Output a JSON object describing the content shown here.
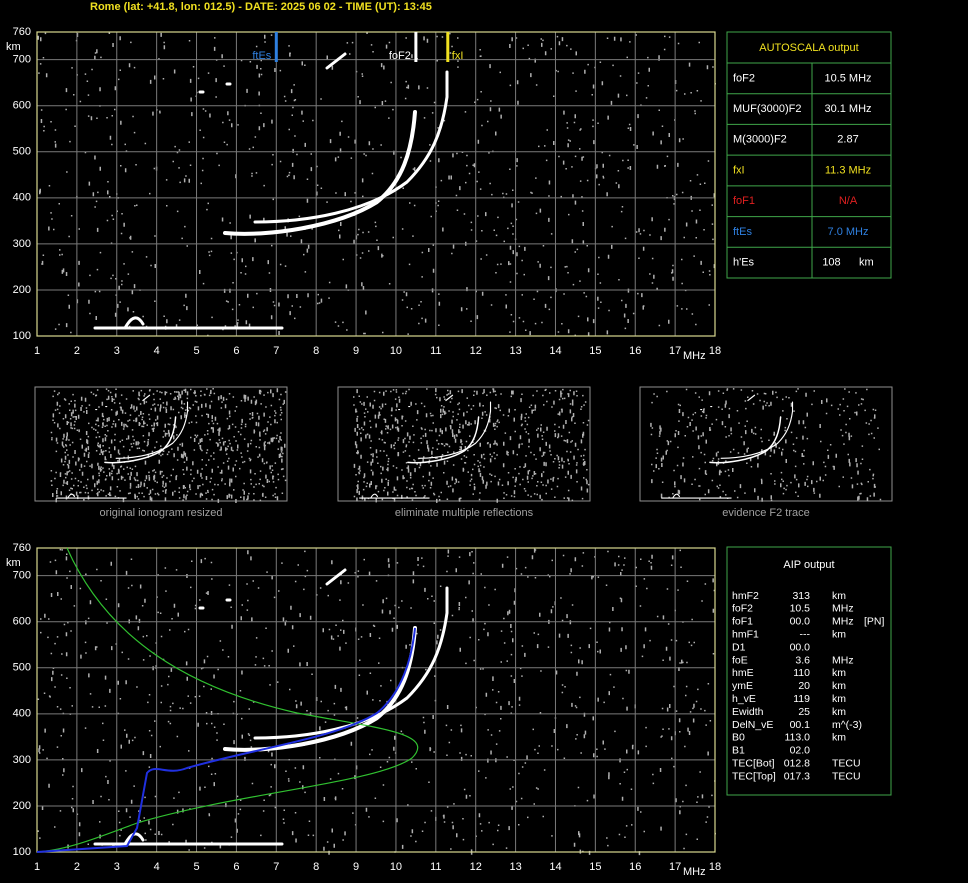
{
  "header": {
    "title": "Rome (lat: +41.8, lon: 012.5) - DATE: 2025 06 02 - TIME (UT): 13:45"
  },
  "ionogram": {
    "xlim": [
      1,
      18
    ],
    "ylim": [
      100,
      760
    ],
    "xticks": [
      1,
      2,
      3,
      4,
      5,
      6,
      7,
      8,
      9,
      10,
      11,
      12,
      13,
      14,
      15,
      16,
      17,
      18
    ],
    "yticks": [
      100,
      200,
      300,
      400,
      500,
      600,
      700,
      760
    ],
    "y_unit": "km",
    "x_unit": "MHz",
    "markers": [
      {
        "label": "ftEs",
        "frequency": 7.0,
        "color": "#2f80e0"
      },
      {
        "label": "foF2",
        "frequency": 10.5,
        "color": "#ffffff"
      },
      {
        "label": "fxI",
        "frequency": 11.3,
        "color": "#f0e020"
      }
    ]
  },
  "autoscala": {
    "title": "AUTOSCALA output",
    "rows": [
      {
        "label": "foF2",
        "value": "10.5 MHz",
        "color": "#ffffff"
      },
      {
        "label": "MUF(3000)F2",
        "value": "30.1 MHz",
        "color": "#ffffff"
      },
      {
        "label": "M(3000)F2",
        "value": "2.87",
        "color": "#ffffff"
      },
      {
        "label": "fxI",
        "value": "11.3 MHz",
        "color": "#f0e020"
      },
      {
        "label": "foF1",
        "value": "N/A",
        "color": "#e02020"
      },
      {
        "label": "ftEs",
        "value": "7.0 MHz",
        "color": "#2f80e0"
      },
      {
        "label": "h'Es",
        "value": "108      km",
        "color": "#ffffff"
      }
    ]
  },
  "thumbnails": [
    {
      "caption": "original ionogram resized"
    },
    {
      "caption": "eliminate multiple reflections"
    },
    {
      "caption": "evidence F2 trace"
    }
  ],
  "aip": {
    "title": "AIP output",
    "rows": [
      [
        "hmF2",
        "313",
        "km"
      ],
      [
        "foF2",
        "10.5",
        "MHz"
      ],
      [
        "foF1",
        "00.0",
        "MHz",
        "[PN]"
      ],
      [
        "hmF1",
        "---",
        "km"
      ],
      [
        "D1",
        "00.0"
      ],
      [
        "foE",
        "3.6",
        "MHz"
      ],
      [
        "hmE",
        "110",
        "km"
      ],
      [
        "ymE",
        "20",
        "km"
      ],
      [
        "h_vE",
        "119",
        "km"
      ],
      [
        "Ewidth",
        "25",
        "km"
      ],
      [
        "DelN_vE",
        "00.1",
        "m^(-3)"
      ],
      [
        "B0",
        "113.0",
        "km"
      ],
      [
        "B1",
        "02.0"
      ],
      [
        "TEC[Bot]",
        "012.8",
        "TECU"
      ],
      [
        "TEC[Top]",
        "017.3",
        "TECU"
      ]
    ]
  }
}
